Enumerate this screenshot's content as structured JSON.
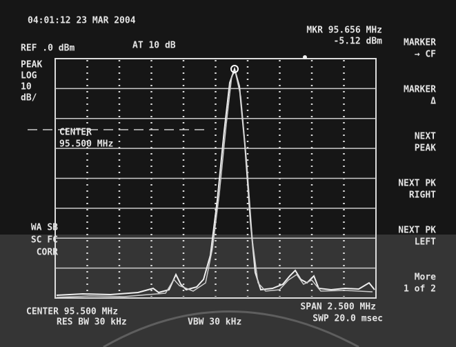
{
  "header": {
    "timestamp": "04:01:12  23 MAR 2004",
    "marker_frequency": "MKR 95.656 MHz",
    "marker_level": "-5.12 dBm",
    "reference": "REF .0 dBm",
    "attenuation": "AT 10 dB"
  },
  "scale": [
    "PEAK",
    "LOG",
    "10",
    "dB/"
  ],
  "center_annotation": [
    "CENTER",
    "95.500 MHz"
  ],
  "status": [
    "WA SB",
    "SC FC",
    "CORR"
  ],
  "footer": {
    "center": "CENTER 95.500 MHz",
    "res_bw": "RES BW 30 kHz",
    "vbw": "VBW 30 kHz",
    "span": "SPAN 2.500 MHz",
    "sweep": "SWP 20.0 msec"
  },
  "softkeys": [
    [
      "MARKER",
      "→ CF"
    ],
    [
      "MARKER",
      "Δ"
    ],
    [
      "NEXT",
      "PEAK"
    ],
    [
      "NEXT PK",
      "RIGHT"
    ],
    [
      "NEXT PK",
      "LEFT"
    ],
    [
      "More",
      "1 of 2"
    ]
  ]
}
